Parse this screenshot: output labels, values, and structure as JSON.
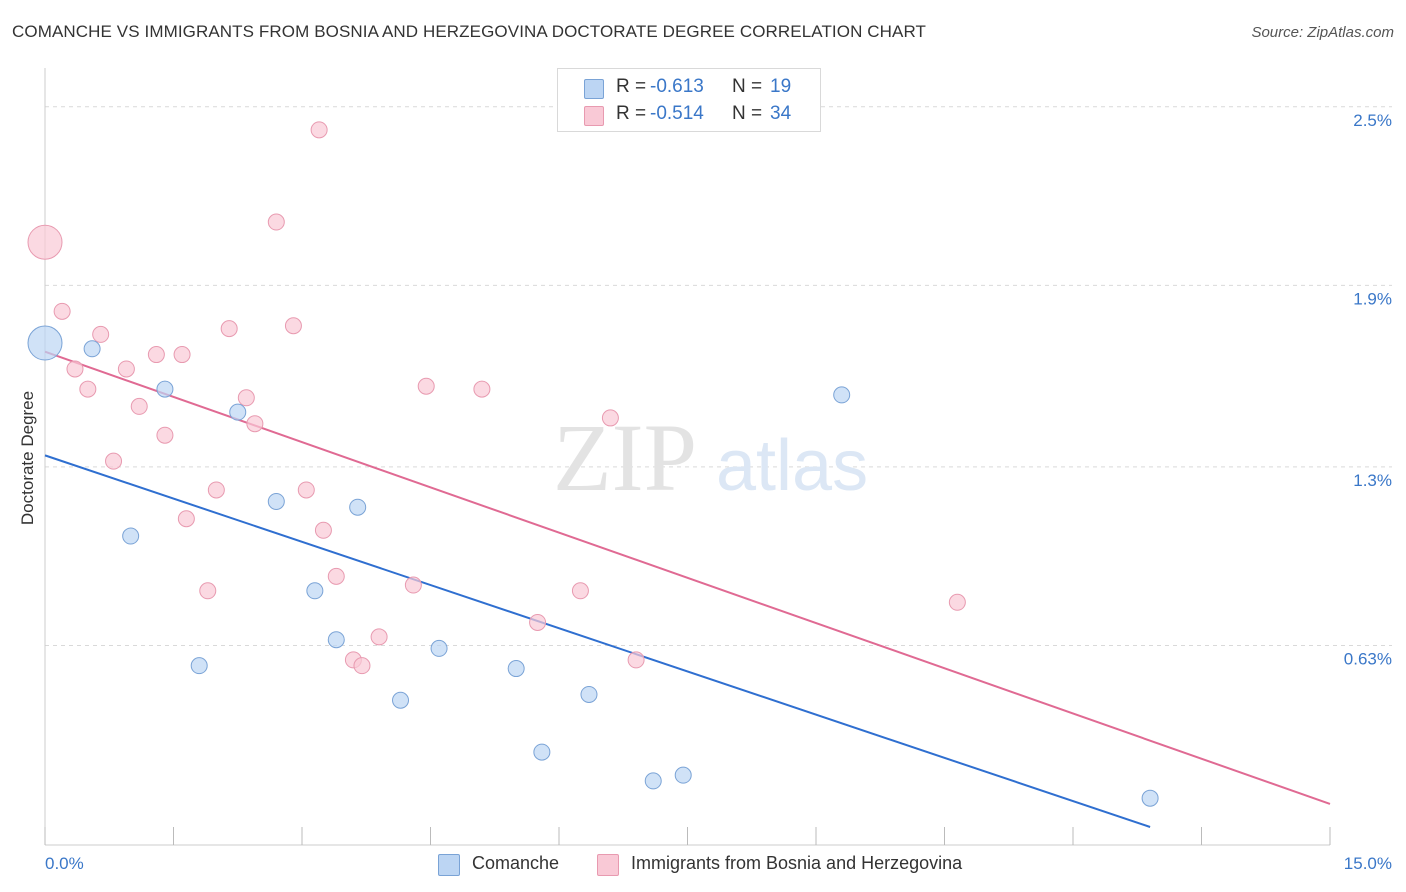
{
  "title": "COMANCHE VS IMMIGRANTS FROM BOSNIA AND HERZEGOVINA DOCTORATE DEGREE CORRELATION CHART",
  "source": "Source: ZipAtlas.com",
  "colors": {
    "comanche_fill": "#bcd5f3",
    "comanche_stroke": "#7aa3d6",
    "comanche_line": "#2f6fd0",
    "bosnia_fill": "#f9c9d6",
    "bosnia_stroke": "#e89ab0",
    "bosnia_line": "#e06a93",
    "axis_label_color": "#3a77c8",
    "grid": "#d9d9d9"
  },
  "legend_top": {
    "rows": [
      {
        "r_label": "R =",
        "r_value": "-0.613",
        "n_label": "N =",
        "n_value": "19"
      },
      {
        "r_label": "R =",
        "r_value": "-0.514",
        "n_label": "N =",
        "n_value": "34"
      }
    ]
  },
  "legend_bottom": {
    "comanche": "Comanche",
    "bosnia": "Immigrants from Bosnia and Herzegovina"
  },
  "chart_data": {
    "type": "scatter",
    "title": "COMANCHE VS IMMIGRANTS FROM BOSNIA AND HERZEGOVINA DOCTORATE DEGREE CORRELATION CHART",
    "xlabel": "",
    "ylabel": "Doctorate Degree",
    "xlim": [
      0,
      15
    ],
    "ylim": [
      0,
      2.6
    ],
    "x_tick_labels": [
      {
        "value": 0,
        "label": "0.0%"
      },
      {
        "value": 15,
        "label": "15.0%"
      }
    ],
    "y_tick_labels": [
      {
        "value": 0.63,
        "label": "0.63%"
      },
      {
        "value": 1.25,
        "label": "1.3%"
      },
      {
        "value": 1.88,
        "label": "1.9%"
      },
      {
        "value": 2.5,
        "label": "2.5%"
      }
    ],
    "watermark": {
      "left": "ZIP",
      "right": "atlas"
    },
    "series": [
      {
        "name": "Comanche",
        "color": "#bcd5f3",
        "R": -0.613,
        "N": 19,
        "points": [
          {
            "x": 0.0,
            "y": 1.68,
            "size": "large"
          },
          {
            "x": 0.55,
            "y": 1.66
          },
          {
            "x": 1.4,
            "y": 1.52
          },
          {
            "x": 2.25,
            "y": 1.44
          },
          {
            "x": 1.0,
            "y": 1.01
          },
          {
            "x": 2.7,
            "y": 1.13
          },
          {
            "x": 3.65,
            "y": 1.11
          },
          {
            "x": 3.15,
            "y": 0.82
          },
          {
            "x": 3.4,
            "y": 0.65
          },
          {
            "x": 1.8,
            "y": 0.56
          },
          {
            "x": 4.6,
            "y": 0.62
          },
          {
            "x": 5.5,
            "y": 0.55
          },
          {
            "x": 4.15,
            "y": 0.44
          },
          {
            "x": 6.35,
            "y": 0.46
          },
          {
            "x": 5.8,
            "y": 0.26
          },
          {
            "x": 7.1,
            "y": 0.16
          },
          {
            "x": 7.45,
            "y": 0.18
          },
          {
            "x": 9.3,
            "y": 1.5
          },
          {
            "x": 12.9,
            "y": 0.1
          }
        ],
        "trendline": {
          "x": [
            0,
            12.9
          ],
          "y": [
            1.29,
            0.0
          ]
        }
      },
      {
        "name": "Immigrants from Bosnia and Herzegovina",
        "color": "#f9c9d6",
        "R": -0.514,
        "N": 34,
        "points": [
          {
            "x": 0.0,
            "y": 2.03,
            "size": "large"
          },
          {
            "x": 3.2,
            "y": 2.42
          },
          {
            "x": 2.7,
            "y": 2.1
          },
          {
            "x": 0.2,
            "y": 1.79
          },
          {
            "x": 0.65,
            "y": 1.71
          },
          {
            "x": 2.15,
            "y": 1.73
          },
          {
            "x": 2.9,
            "y": 1.74
          },
          {
            "x": 1.3,
            "y": 1.64
          },
          {
            "x": 1.6,
            "y": 1.64
          },
          {
            "x": 0.35,
            "y": 1.59
          },
          {
            "x": 0.95,
            "y": 1.59
          },
          {
            "x": 0.5,
            "y": 1.52
          },
          {
            "x": 2.35,
            "y": 1.49
          },
          {
            "x": 1.1,
            "y": 1.46
          },
          {
            "x": 2.45,
            "y": 1.4
          },
          {
            "x": 1.4,
            "y": 1.36
          },
          {
            "x": 4.45,
            "y": 1.53
          },
          {
            "x": 5.1,
            "y": 1.52
          },
          {
            "x": 6.6,
            "y": 1.42
          },
          {
            "x": 0.8,
            "y": 1.27
          },
          {
            "x": 2.0,
            "y": 1.17
          },
          {
            "x": 3.05,
            "y": 1.17
          },
          {
            "x": 1.65,
            "y": 1.07
          },
          {
            "x": 3.25,
            "y": 1.03
          },
          {
            "x": 3.4,
            "y": 0.87
          },
          {
            "x": 4.3,
            "y": 0.84
          },
          {
            "x": 1.9,
            "y": 0.82
          },
          {
            "x": 6.25,
            "y": 0.82
          },
          {
            "x": 10.65,
            "y": 0.78
          },
          {
            "x": 5.75,
            "y": 0.71
          },
          {
            "x": 3.9,
            "y": 0.66
          },
          {
            "x": 3.6,
            "y": 0.58
          },
          {
            "x": 3.7,
            "y": 0.56
          },
          {
            "x": 6.9,
            "y": 0.58
          }
        ],
        "trendline": {
          "x": [
            0,
            15
          ],
          "y": [
            1.65,
            0.08
          ]
        }
      }
    ]
  }
}
